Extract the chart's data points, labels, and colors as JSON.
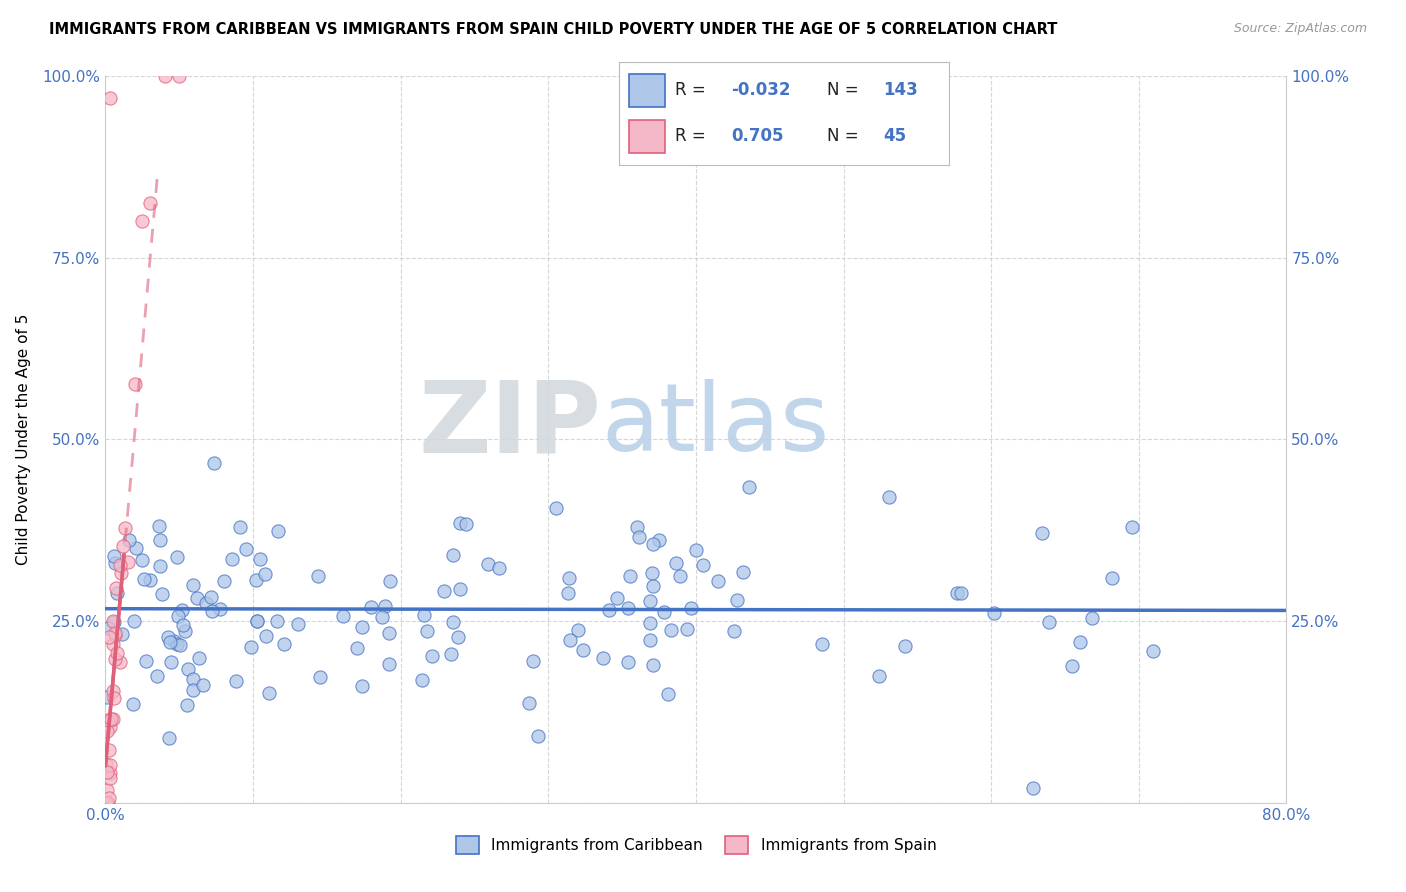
{
  "title": "IMMIGRANTS FROM CARIBBEAN VS IMMIGRANTS FROM SPAIN CHILD POVERTY UNDER THE AGE OF 5 CORRELATION CHART",
  "source": "Source: ZipAtlas.com",
  "ylabel": "Child Poverty Under the Age of 5",
  "xlim": [
    0.0,
    0.8
  ],
  "ylim": [
    0.0,
    1.0
  ],
  "caribbean_R": -0.032,
  "caribbean_N": 143,
  "spain_R": 0.705,
  "spain_N": 45,
  "caribbean_color": "#aec6e8",
  "spain_color": "#f5b8c8",
  "caribbean_edge_color": "#4472c4",
  "spain_edge_color": "#e0607a",
  "caribbean_line_color": "#4472c4",
  "spain_line_color": "#e0607a",
  "watermark_zip_color": "#d0d8e0",
  "watermark_atlas_color": "#b8cce4",
  "background_color": "#ffffff",
  "grid_color": "#cccccc",
  "title_color": "#000000",
  "axis_label_color": "#000000",
  "tick_color": "#4472c4",
  "legend_label1": "Immigrants from Caribbean",
  "legend_label2": "Immigrants from Spain"
}
